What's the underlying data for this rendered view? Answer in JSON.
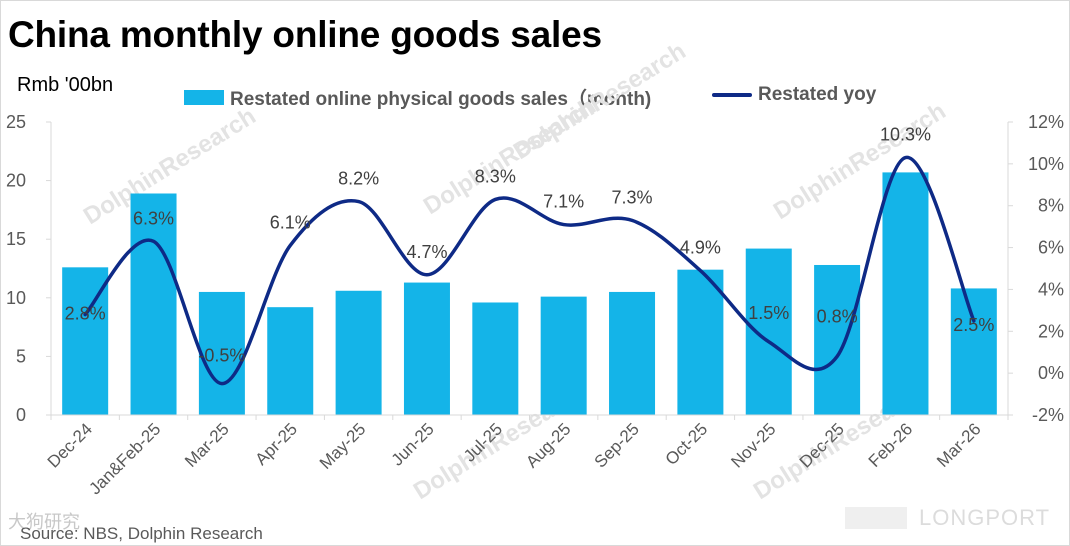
{
  "header": {
    "title": "China monthly online goods sales",
    "unit": "Rmb '00bn"
  },
  "legend": {
    "bar_label": "Restated online physical goods sales（month)",
    "line_label": "Restated yoy"
  },
  "footer": {
    "source": "Source: NBS, Dolphin Research",
    "brand_mark": "大狗研究",
    "longport": "LONGPORT"
  },
  "watermark": "DolphinResearch",
  "colors": {
    "bar": "#14b4e8",
    "line": "#0e2a86",
    "axis": "#d9d9d9",
    "text": "#595959"
  },
  "chart_data": {
    "type": "bar+line",
    "title": "China monthly online goods sales",
    "categories": [
      "Dec-24",
      "Jan&Feb-25",
      "Mar-25",
      "Apr-25",
      "May-25",
      "Jun-25",
      "Jul-25",
      "Aug-25",
      "Sep-25",
      "Oct-25",
      "Nov-25",
      "Dec-25",
      "Feb-26",
      "Mar-26"
    ],
    "series": [
      {
        "name": "Restated online physical goods sales（month)",
        "type": "bar",
        "axis": "left",
        "values": [
          12.6,
          18.9,
          10.5,
          9.2,
          10.6,
          11.3,
          9.6,
          10.1,
          10.5,
          12.4,
          14.2,
          12.8,
          20.7,
          10.8
        ]
      },
      {
        "name": "Restated yoy",
        "type": "line",
        "axis": "right",
        "values": [
          2.8,
          6.3,
          -0.5,
          6.1,
          8.2,
          4.7,
          8.3,
          7.1,
          7.3,
          4.9,
          1.5,
          0.8,
          10.3,
          2.5
        ],
        "labels": [
          "2.8%",
          "6.3%",
          "-0.5%",
          "6.1%",
          "8.2%",
          "4.7%",
          "8.3%",
          "7.1%",
          "7.3%",
          "4.9%",
          "1.5%",
          "0.8%",
          "10.3%",
          "2.5%"
        ]
      }
    ],
    "y_left": {
      "min": 0,
      "max": 25,
      "ticks": [
        0,
        5,
        10,
        15,
        20,
        25
      ],
      "tick_labels": [
        "0",
        "5",
        "10",
        "15",
        "20",
        "25"
      ]
    },
    "y_right": {
      "min": -2,
      "max": 12,
      "ticks": [
        -2,
        0,
        2,
        4,
        6,
        8,
        10,
        12
      ],
      "tick_labels": [
        "-2%",
        "0%",
        "2%",
        "4%",
        "6%",
        "8%",
        "10%",
        "12%"
      ]
    },
    "grid": false,
    "legend_position": "top"
  }
}
